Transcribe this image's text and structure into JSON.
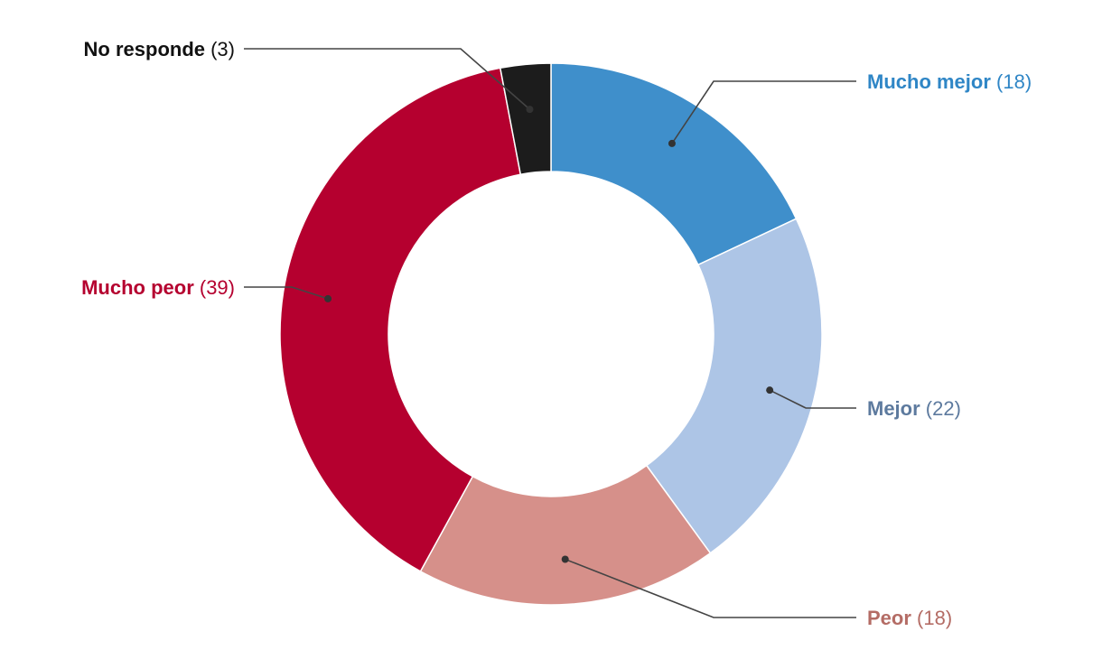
{
  "chart_data": {
    "type": "pie",
    "donut": true,
    "title": "",
    "slices": [
      {
        "label": "Mucho mejor",
        "value": 18,
        "display": "(18)",
        "color": "#3f8fcb",
        "label_color": "#2f86c6"
      },
      {
        "label": "Mejor",
        "value": 22,
        "display": "(22)",
        "color": "#adc5e6",
        "label_color": "#5d7a9e"
      },
      {
        "label": "Peor",
        "value": 18,
        "display": "(18)",
        "color": "#d6908a",
        "label_color": "#b46c65"
      },
      {
        "label": "Mucho peor",
        "value": 39,
        "display": "(39)",
        "color": "#b5002f",
        "label_color": "#b5002f"
      },
      {
        "label": "No responde",
        "value": 3,
        "display": "(3)",
        "color": "#1c1c1c",
        "label_color": "#111111"
      }
    ]
  }
}
